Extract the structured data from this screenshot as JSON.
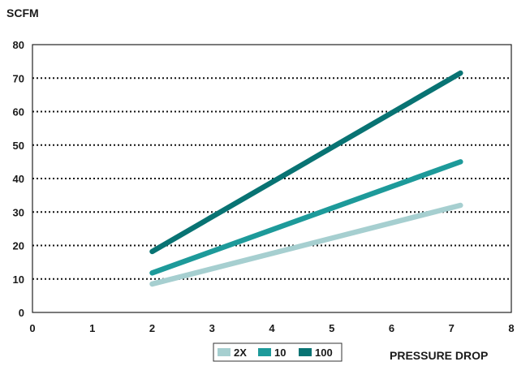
{
  "chart_data": {
    "type": "line",
    "title": "",
    "ylabel": "SCFM",
    "xlabel": "PRESSURE DROP",
    "xlim": [
      0,
      8
    ],
    "ylim": [
      0,
      80
    ],
    "xticks": [
      "0",
      "1",
      "2",
      "3",
      "4",
      "5",
      "6",
      "7",
      "8"
    ],
    "yticks": [
      "0",
      "10",
      "20",
      "30",
      "40",
      "50",
      "60",
      "70",
      "80"
    ],
    "grid": "horizontal dotted",
    "legend_position": "bottom",
    "series": [
      {
        "name": "2X",
        "color": "#a6cfd0",
        "x": [
          2,
          7.15
        ],
        "y": [
          8.5,
          32
        ]
      },
      {
        "name": "10",
        "color": "#1d9a9a",
        "x": [
          2,
          7.15
        ],
        "y": [
          11.8,
          45
        ]
      },
      {
        "name": "100",
        "color": "#087373",
        "x": [
          2,
          7.15
        ],
        "y": [
          18.2,
          71.5
        ]
      }
    ]
  }
}
